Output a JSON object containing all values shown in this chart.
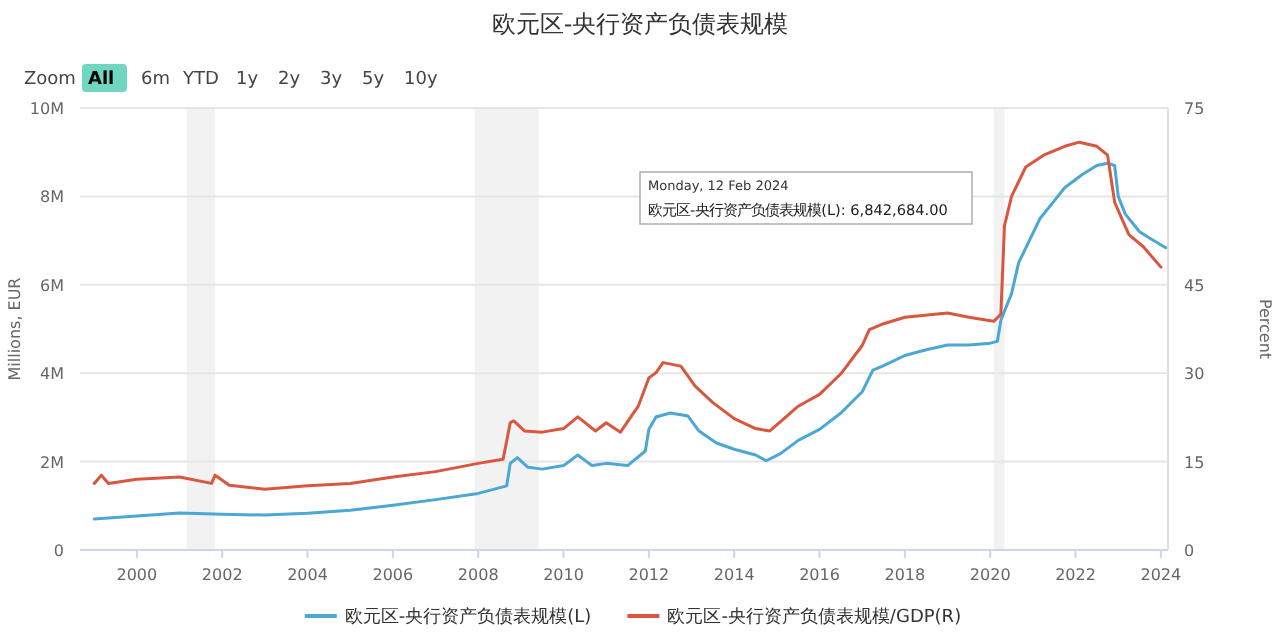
{
  "chart_data": {
    "type": "line",
    "title": "欧元区-央行资产负债表规模",
    "ylabel": "Millions, EUR",
    "y2label": "Percent",
    "annotations": [
      "Zoom",
      "All",
      "6m",
      "YTD",
      "1y",
      "2y",
      "3y",
      "5y",
      "10y",
      "Monday, 12 Feb 2024",
      "欧元区-央行资产负债表规模(L): 6,842,684.00"
    ],
    "xlim": [
      "1998-09",
      "2024-03"
    ],
    "xticks": [
      "2000",
      "2002",
      "2004",
      "2006",
      "2008",
      "2010",
      "2012",
      "2014",
      "2016",
      "2018",
      "2020",
      "2022",
      "2024"
    ],
    "ylim": [
      0,
      10000000
    ],
    "yticks": [
      0,
      {
        "value": 2000000,
        "label": "2M"
      },
      {
        "value": 4000000,
        "label": "4M"
      },
      {
        "value": 6000000,
        "label": "6M"
      },
      {
        "value": 8000000,
        "label": "8M"
      },
      {
        "value": 10000000,
        "label": "10M"
      }
    ],
    "y2lim": [
      0,
      75
    ],
    "y2ticks": [
      0,
      15,
      30,
      45,
      75
    ],
    "grid": "y",
    "legend": "bottom",
    "marker": "none",
    "line_style": "solid",
    "bands": [
      {
        "axis": "x",
        "from": "2001-03",
        "to": "2001-11",
        "color": "#f2f2f2"
      },
      {
        "axis": "x",
        "from": "2007-12",
        "to": "2009-06",
        "color": "#f2f2f2"
      },
      {
        "axis": "x",
        "from": "2020-02",
        "to": "2020-05",
        "color": "#f2f2f2"
      }
    ],
    "series": [
      {
        "name": "欧元区-央行资产负债表规模(L)",
        "color": "#4ba7d4",
        "x": [
          "1999-01",
          "2000-01",
          "2001-01",
          "2002-01",
          "2003-01",
          "2004-01",
          "2005-01",
          "2006-01",
          "2007-01",
          "2008-01",
          "2008-09",
          "2008-10",
          "2008-12",
          "2009-03",
          "2009-07",
          "2010-01",
          "2010-05",
          "2010-09",
          "2011-01",
          "2011-07",
          "2011-12",
          "2012-01",
          "2012-03",
          "2012-07",
          "2012-12",
          "2013-03",
          "2013-08",
          "2014-01",
          "2014-07",
          "2014-10",
          "2015-02",
          "2015-07",
          "2016-01",
          "2016-07",
          "2017-01",
          "2017-04",
          "2017-07",
          "2018-01",
          "2018-07",
          "2019-01",
          "2019-07",
          "2020-01",
          "2020-03",
          "2020-04",
          "2020-07",
          "2020-09",
          "2020-12",
          "2021-03",
          "2021-07",
          "2021-10",
          "2022-03",
          "2022-07",
          "2022-10",
          "2022-12",
          "2023-01",
          "2023-03",
          "2023-07",
          "2023-10",
          "2024-02-12"
        ],
        "values": [
          700000,
          770000,
          840000,
          810000,
          790000,
          830000,
          900000,
          1010000,
          1140000,
          1280000,
          1450000,
          1960000,
          2090000,
          1870000,
          1830000,
          1910000,
          2150000,
          1910000,
          1960000,
          1910000,
          2240000,
          2730000,
          3010000,
          3100000,
          3030000,
          2700000,
          2420000,
          2280000,
          2150000,
          2020000,
          2180000,
          2480000,
          2730000,
          3100000,
          3580000,
          4070000,
          4170000,
          4400000,
          4530000,
          4640000,
          4640000,
          4680000,
          4720000,
          5200000,
          5800000,
          6500000,
          7000000,
          7500000,
          7900000,
          8200000,
          8500000,
          8700000,
          8750000,
          8700000,
          8000000,
          7600000,
          7200000,
          7050000,
          6840000
        ]
      },
      {
        "name": "欧元区-央行资产负债表规模/GDP(R)",
        "color": "#d9573e",
        "axis": "y2",
        "x": [
          "1999-01",
          "1999-03",
          "1999-05",
          "2000-01",
          "2001-01",
          "2001-10",
          "2001-11",
          "2002-03",
          "2003-01",
          "2004-01",
          "2005-01",
          "2006-01",
          "2007-01",
          "2008-01",
          "2008-08",
          "2008-10",
          "2008-11",
          "2009-02",
          "2009-07",
          "2010-01",
          "2010-05",
          "2010-10",
          "2011-01",
          "2011-05",
          "2011-10",
          "2012-01",
          "2012-03",
          "2012-05",
          "2012-10",
          "2013-02",
          "2013-07",
          "2014-01",
          "2014-07",
          "2014-11",
          "2015-03",
          "2015-07",
          "2016-01",
          "2016-07",
          "2017-01",
          "2017-03",
          "2017-07",
          "2018-01",
          "2019-01",
          "2019-07",
          "2020-02",
          "2020-04",
          "2020-05",
          "2020-07",
          "2020-11",
          "2021-04",
          "2021-10",
          "2022-02",
          "2022-07",
          "2022-10",
          "2022-12",
          "2023-04",
          "2023-08",
          "2024-01"
        ],
        "values": [
          11.3,
          12.7,
          11.3,
          12.0,
          12.4,
          11.3,
          12.7,
          11.0,
          10.3,
          10.9,
          11.3,
          12.4,
          13.3,
          14.7,
          15.4,
          21.6,
          21.9,
          20.2,
          20.0,
          20.6,
          22.6,
          20.2,
          21.6,
          20.0,
          24.4,
          29.2,
          30.1,
          31.8,
          31.2,
          27.8,
          25.0,
          22.3,
          20.6,
          20.2,
          22.3,
          24.4,
          26.4,
          29.9,
          34.7,
          37.4,
          38.4,
          39.5,
          40.2,
          39.5,
          38.8,
          40.0,
          55,
          60,
          65,
          67,
          68.5,
          69.2,
          68.5,
          67,
          59,
          53.5,
          51.5,
          48
        ]
      }
    ]
  }
}
